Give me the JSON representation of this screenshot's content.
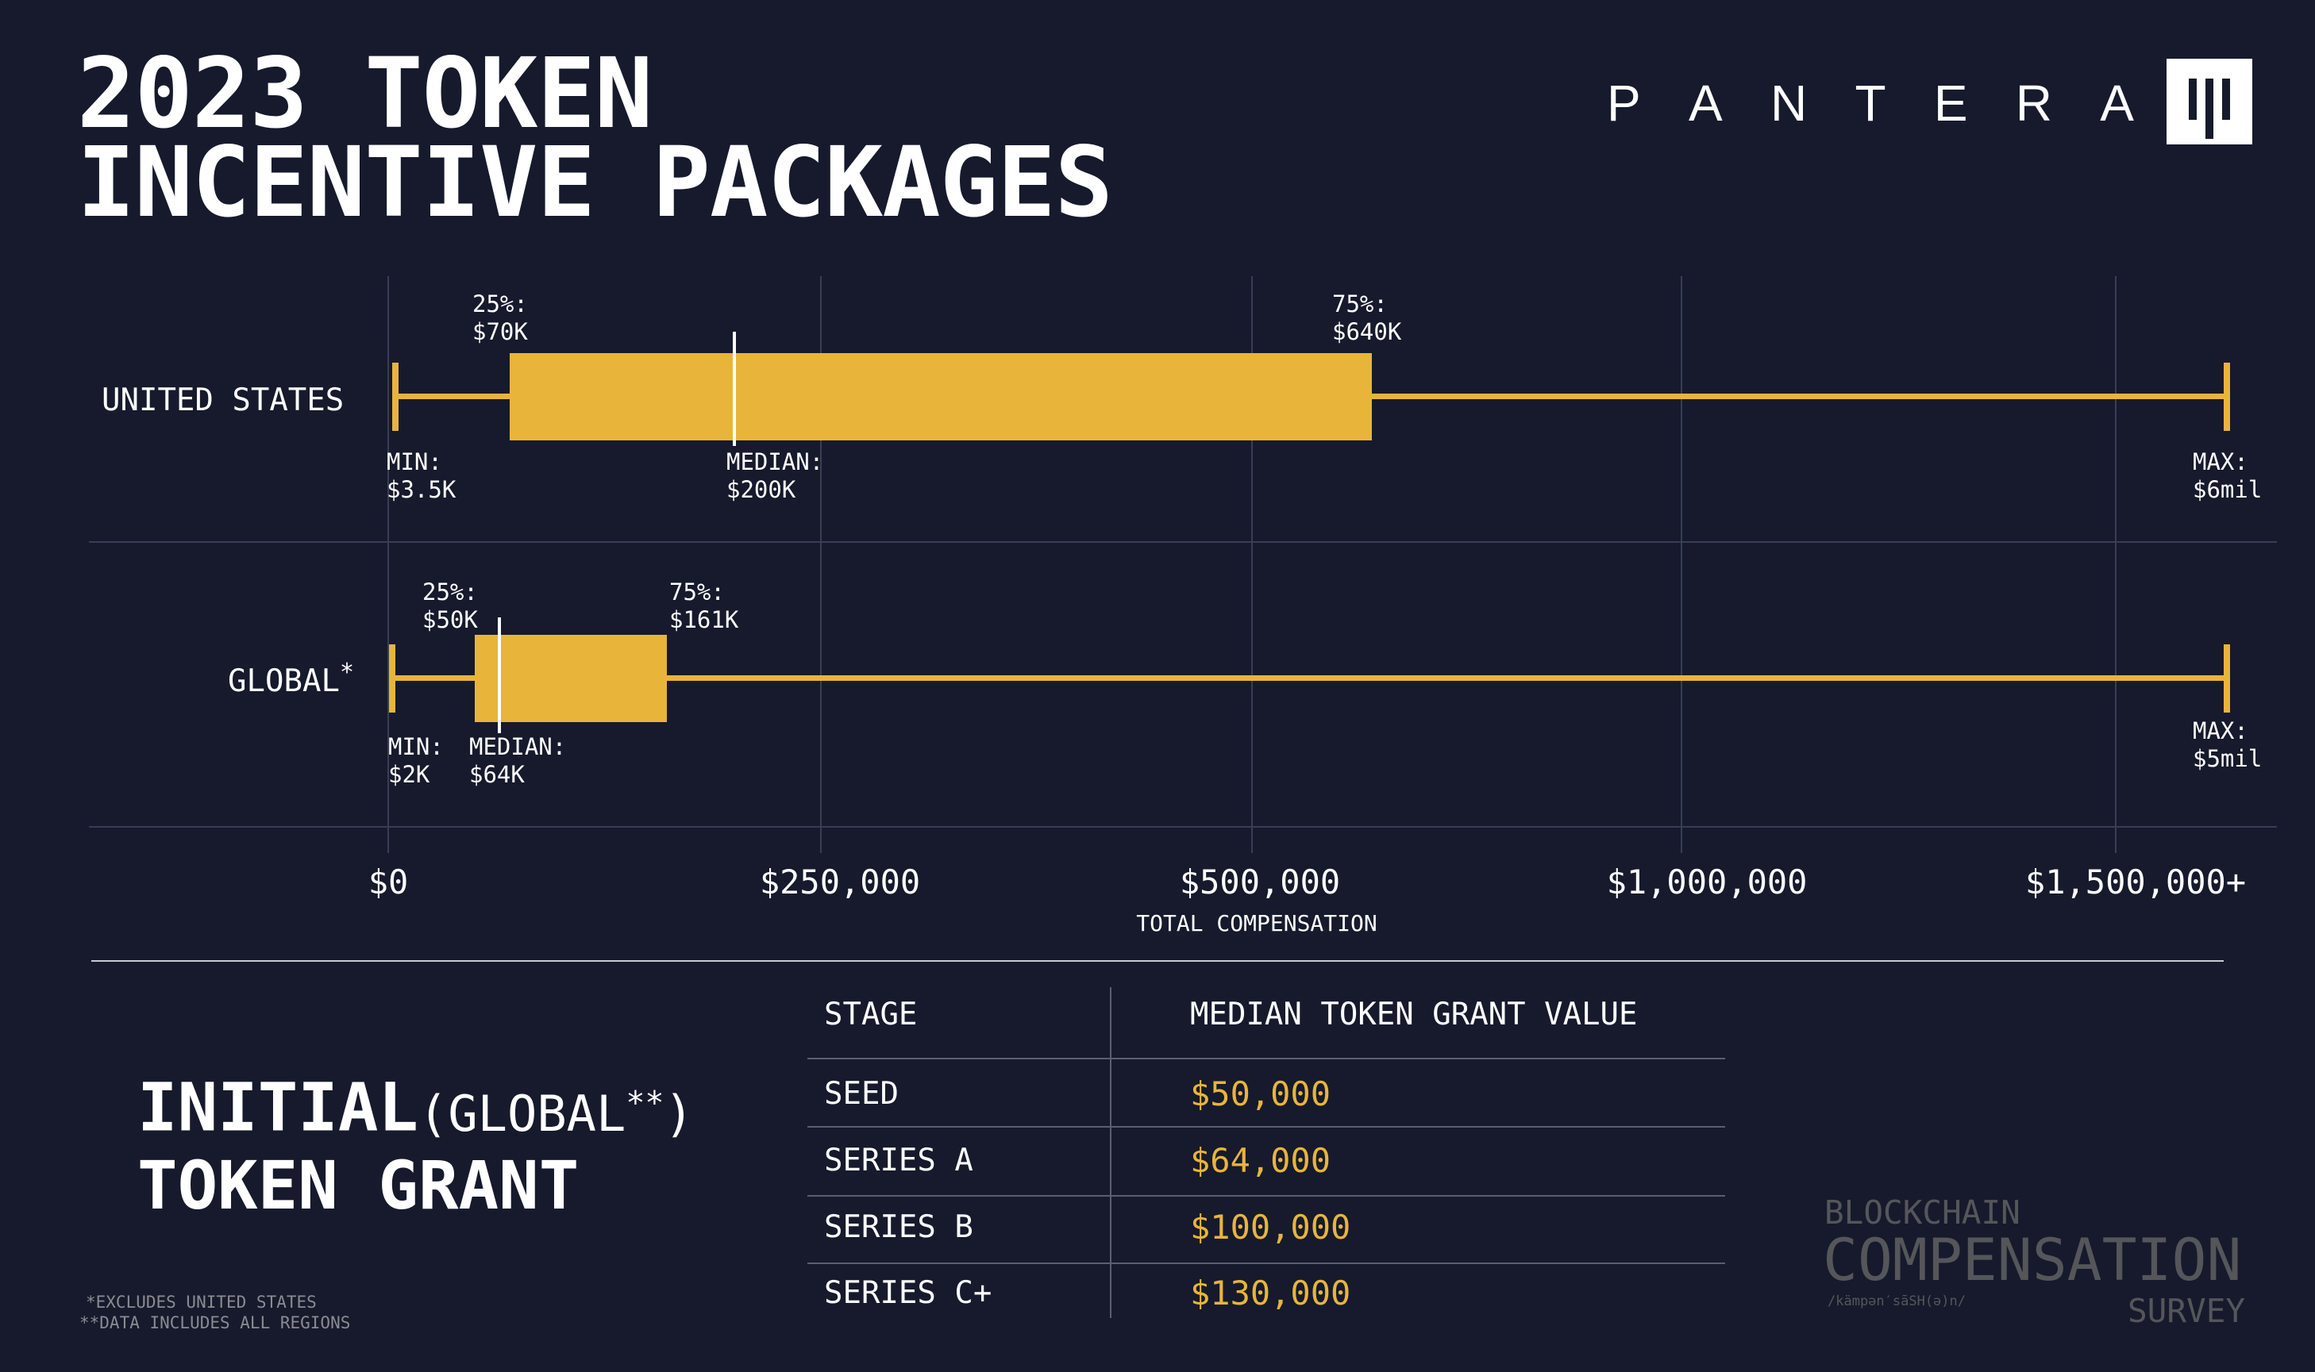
{
  "title": "2023 TOKEN\nINCENTIVE PACKAGES",
  "brand": {
    "name": "PANTERA",
    "letters": [
      "P",
      "A",
      "N",
      "T",
      "E",
      "R",
      "A"
    ]
  },
  "colors": {
    "background": "#161a2c",
    "accent": "#e8b53a",
    "grid": "#3a3e52"
  },
  "chart_data": {
    "type": "boxplot",
    "orientation": "horizontal",
    "xlabel": "TOTAL COMPENSATION",
    "x_ticks": [
      0,
      250000,
      500000,
      1000000,
      1500000
    ],
    "x_tick_labels": [
      "$0",
      "$250,000",
      "$500,000",
      "$1,000,000",
      "$1,500,000+"
    ],
    "grid": true,
    "series": [
      {
        "name": "UNITED STATES",
        "min": 3500,
        "q1": 70000,
        "median": 200000,
        "q3": 640000,
        "max": 6000000,
        "labels": {
          "q1": "25%:\n$70K",
          "q3": "75%:\n$640K",
          "min": "MIN:\n$3.5K",
          "median": "MEDIAN:\n$200K",
          "max": "MAX:\n$6mil"
        }
      },
      {
        "name": "GLOBAL",
        "name_mark": "*",
        "min": 2000,
        "q1": 50000,
        "median": 64000,
        "q3": 161000,
        "max": 5000000,
        "labels": {
          "q1": "25%:\n$50K",
          "q3": "75%:\n$161K",
          "min": "MIN:\n$2K",
          "median": "MEDIAN:\n$64K",
          "max": "MAX:\n$5mil"
        }
      }
    ]
  },
  "grant": {
    "title_line1": "INITIAL",
    "title_sub": "(GLOBAL",
    "title_sub_mark": "**",
    "title_sub_close": ")",
    "title_line2": "TOKEN GRANT",
    "table": {
      "headers": [
        "STAGE",
        "MEDIAN TOKEN GRANT VALUE"
      ],
      "rows": [
        {
          "stage": "SEED",
          "value": "$50,000"
        },
        {
          "stage": "SERIES A",
          "value": "$64,000"
        },
        {
          "stage": "SERIES B",
          "value": "$100,000"
        },
        {
          "stage": "SERIES C+",
          "value": "$130,000"
        }
      ]
    }
  },
  "survey_logo": {
    "line1": "BLOCKCHAIN",
    "line2": "COMPENSATION",
    "pronunciation": "/kämpən′sāSH(ə)n/",
    "line3": "SURVEY"
  },
  "footnotes": [
    "*EXCLUDES UNITED STATES",
    "**DATA INCLUDES ALL REGIONS"
  ]
}
